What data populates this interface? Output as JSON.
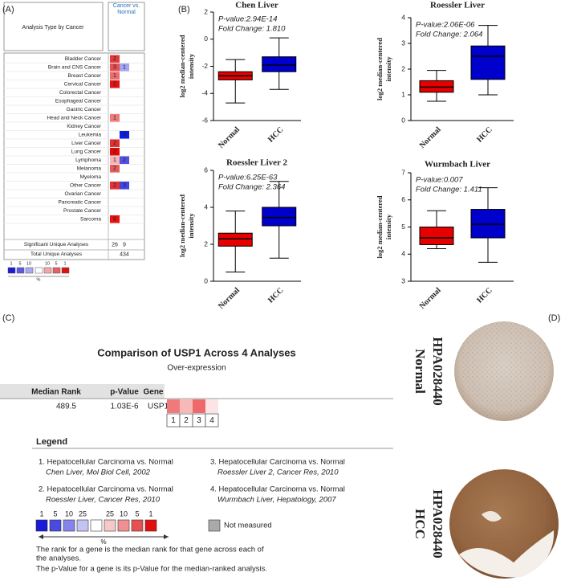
{
  "panel_labels": [
    "(A)",
    "(B)",
    "(C)",
    "(D)"
  ],
  "panel_a": {
    "header_left": "Analysis Type by Cancer",
    "header_right": "Cancer vs. Normal",
    "rows": [
      {
        "label": "Bladder Cancer",
        "up": {
          "value": 2,
          "color": "#e23a3a"
        }
      },
      {
        "label": "Brain and CNS Cancer",
        "up": {
          "value": 3,
          "color": "#e65050"
        },
        "down": {
          "value": 1,
          "color": "#a4a4f2"
        }
      },
      {
        "label": "Breast Cancer",
        "up": {
          "value": 1,
          "color": "#ef6c6c"
        }
      },
      {
        "label": "Cervical Cancer",
        "up": {
          "value": 2,
          "color": "#e01414"
        }
      },
      {
        "label": "Colorectal Cancer"
      },
      {
        "label": "Esophageal Cancer"
      },
      {
        "label": "Gastric Cancer"
      },
      {
        "label": "Head and Neck Cancer",
        "up": {
          "value": 1,
          "color": "#ef7a7a"
        }
      },
      {
        "label": "Kidney Cancer"
      },
      {
        "label": "Leukemia",
        "down": {
          "value": 3,
          "color": "#0c1ee0"
        }
      },
      {
        "label": "Liver Cancer",
        "up": {
          "value": 2,
          "color": "#e23030"
        }
      },
      {
        "label": "Lung Cancer",
        "up": {
          "value": 2,
          "color": "#e00a0a"
        }
      },
      {
        "label": "Lymphoma",
        "up": {
          "value": 1,
          "color": "#f6b4b4"
        },
        "down": {
          "value": 2,
          "color": "#5252e2"
        }
      },
      {
        "label": "Melanoma",
        "up": {
          "value": 2,
          "color": "#e65c5c"
        }
      },
      {
        "label": "Myeloma"
      },
      {
        "label": "Other Cancer",
        "up": {
          "value": 2,
          "color": "#e23232"
        },
        "down": {
          "value": 3,
          "color": "#4444e0"
        }
      },
      {
        "label": "Ovarian Cancer"
      },
      {
        "label": "Pancreatic Cancer"
      },
      {
        "label": "Prostate Cancer"
      },
      {
        "label": "Sarcoma",
        "up": {
          "value": 9,
          "color": "#e81212"
        }
      }
    ],
    "summary": [
      {
        "label": "Significant Unique Analyses",
        "values": [
          26,
          9
        ]
      },
      {
        "label": "Total Unique Analyses",
        "values": [
          434
        ]
      }
    ],
    "legend": {
      "blue": [
        1,
        5,
        10
      ],
      "blue_colors": [
        "#1a1ad8",
        "#5a5ae4",
        "#a8a8f0"
      ],
      "red": [
        10,
        5,
        1
      ],
      "red_colors": [
        "#f2a8a8",
        "#e86060",
        "#e01010"
      ],
      "unit": "%"
    }
  },
  "chart_data": [
    {
      "type": "box",
      "title": "Chen Liver",
      "annotations": [
        "P-value:2.94E-14",
        "Fold Change: 1.810"
      ],
      "ylabel": [
        "log2 median-centered",
        "intensity"
      ],
      "categories": [
        "Normal",
        "HCC"
      ],
      "boxes": [
        {
          "color": "#e60000",
          "whisker_low": -4.7,
          "q1": -3.0,
          "median": -2.7,
          "q3": -2.4,
          "whisker_high": -1.5
        },
        {
          "color": "#0000cc",
          "whisker_low": -3.7,
          "q1": -2.4,
          "median": -1.9,
          "q3": -1.3,
          "whisker_high": 0.1
        }
      ],
      "ylim": [
        -6,
        2
      ],
      "yticks": [
        -6,
        -4,
        -2,
        0,
        2
      ]
    },
    {
      "type": "box",
      "title": "Roessler Liver",
      "annotations": [
        "P-value:2.06E-06",
        "Fold Change: 2.064"
      ],
      "ylabel": [
        "log2 median-centered",
        "intensity"
      ],
      "categories": [
        "Normal",
        "HCC"
      ],
      "boxes": [
        {
          "color": "#e60000",
          "whisker_low": 0.75,
          "q1": 1.1,
          "median": 1.3,
          "q3": 1.55,
          "whisker_high": 1.95
        },
        {
          "color": "#0000cc",
          "whisker_low": 1.0,
          "q1": 1.6,
          "median": 2.5,
          "q3": 2.9,
          "whisker_high": 3.7
        }
      ],
      "ylim": [
        0,
        4
      ],
      "yticks": [
        0,
        1,
        2,
        3,
        4
      ]
    },
    {
      "type": "box",
      "title": "Roessler Liver 2",
      "annotations": [
        "P-value:6.25E-63",
        "Fold Change: 2.364"
      ],
      "ylabel": [
        "log2 median-centered",
        "intensity"
      ],
      "categories": [
        "Normal",
        "HCC"
      ],
      "boxes": [
        {
          "color": "#e60000",
          "whisker_low": 0.5,
          "q1": 1.9,
          "median": 2.3,
          "q3": 2.6,
          "whisker_high": 3.8
        },
        {
          "color": "#0000cc",
          "whisker_low": 1.25,
          "q1": 3.0,
          "median": 3.45,
          "q3": 4.0,
          "whisker_high": 5.4
        }
      ],
      "ylim": [
        0,
        6
      ],
      "yticks": [
        0,
        2,
        4,
        6
      ]
    },
    {
      "type": "box",
      "title": "Wurmbach Liver",
      "annotations": [
        "P-value:0.007",
        "Fold Change: 1.411"
      ],
      "ylabel": [
        "log2 median-centered",
        "intensity"
      ],
      "categories": [
        "Normal",
        "HCC"
      ],
      "boxes": [
        {
          "color": "#e60000",
          "whisker_low": 4.2,
          "q1": 4.35,
          "median": 4.6,
          "q3": 5.0,
          "whisker_high": 5.6
        },
        {
          "color": "#0000cc",
          "whisker_low": 3.7,
          "q1": 4.6,
          "median": 5.1,
          "q3": 5.65,
          "whisker_high": 6.45
        }
      ],
      "ylim": [
        3,
        7
      ],
      "yticks": [
        3,
        4,
        5,
        6,
        7
      ]
    }
  ],
  "panel_c": {
    "title": "Comparison of USP1 Across 4 Analyses",
    "subtitle": "Over-expression",
    "headers": [
      "Median Rank",
      "p-Value",
      "Gene"
    ],
    "row": [
      489.5,
      "1.03E-6",
      "USP1"
    ],
    "heatmap": {
      "labels": [
        1,
        2,
        3,
        4
      ],
      "colors": [
        "#f07a7a",
        "#f7b8b8",
        "#ee6a6a",
        "#fde4e4"
      ]
    },
    "legend_title": "Legend",
    "legend_items": [
      [
        "1. Hepatocellular Carcinoma vs. Normal",
        "Chen Liver, Mol Biol Cell, 2002"
      ],
      [
        "2. Hepatocellular Carcinoma vs. Normal",
        "Roessler Liver, Cancer Res, 2010"
      ],
      [
        "3. Hepatocellular Carcinoma vs. Normal",
        "Roessler Liver 2, Cancer Res, 2010"
      ],
      [
        "4. Hepatocellular Carcinoma vs. Normal",
        "Wurmbach Liver, Hepatology, 2007"
      ]
    ],
    "scale": {
      "blue": [
        1,
        5,
        10,
        25
      ],
      "blue_colors": [
        "#1a1ad8",
        "#4a4ae0",
        "#8484ea",
        "#c4c4f4"
      ],
      "red": [
        25,
        10,
        5,
        1
      ],
      "red_colors": [
        "#f6c8c8",
        "#f09090",
        "#e85050",
        "#e01010"
      ],
      "unit": "%",
      "not_measured": "Not measured",
      "not_measured_color": "#aaaaaa"
    },
    "notes": [
      "The rank for a gene is the median rank for that gene across each of",
      "the analyses.",
      "The p-Value for a gene is its p-Value for the median-ranked analysis."
    ]
  },
  "panel_d": {
    "labels": [
      [
        "Normal",
        "HPA028440"
      ],
      [
        "HCC",
        "HPA028440"
      ]
    ]
  }
}
